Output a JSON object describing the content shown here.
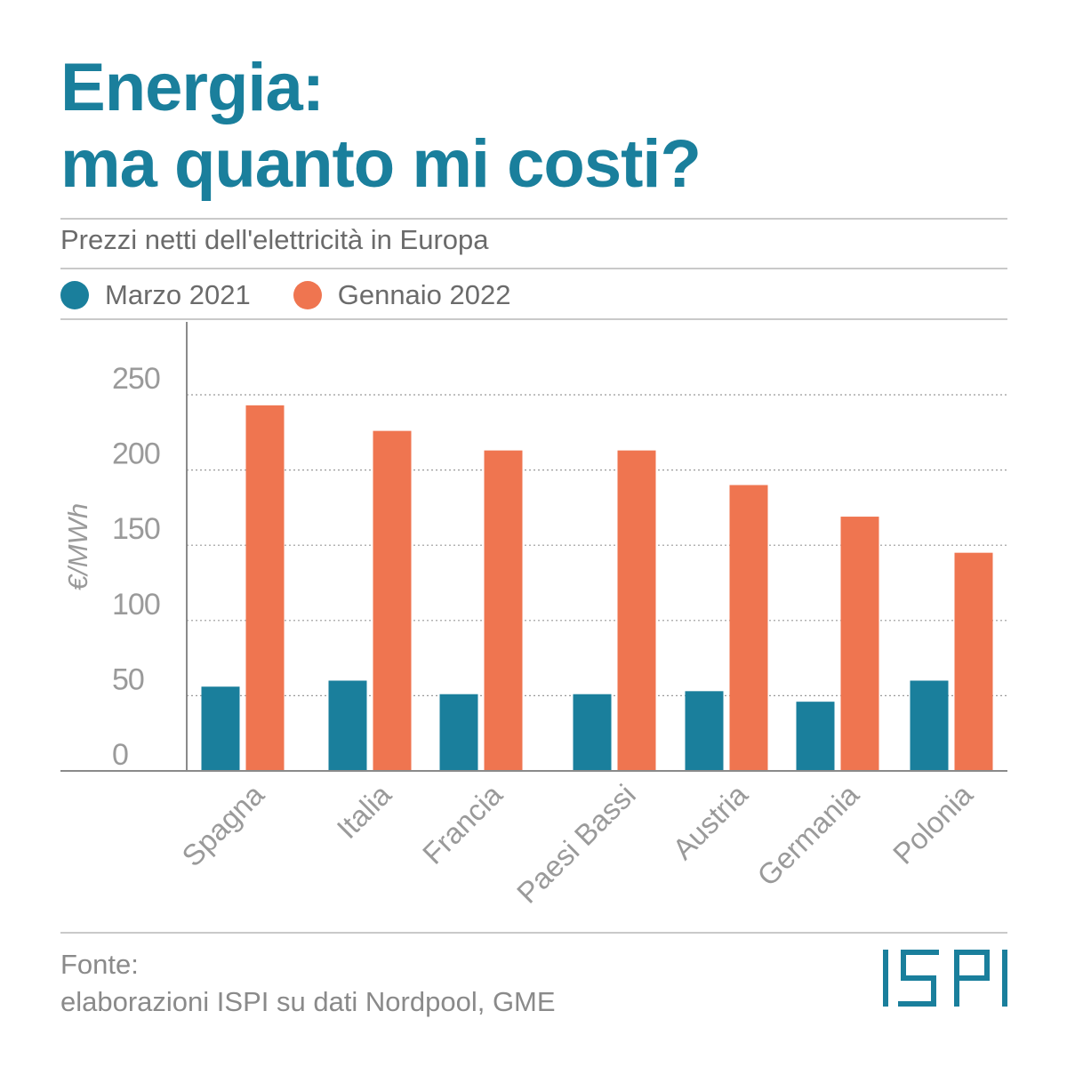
{
  "title_line1": "Energia:",
  "title_line2": "ma quanto mi costi?",
  "subtitle": "Prezzi netti dell'elettricità in Europa",
  "legend": [
    {
      "label": "Marzo 2021",
      "color": "#1a7f9c"
    },
    {
      "label": "Gennaio 2022",
      "color": "#ef7550"
    }
  ],
  "source_line1": "Fonte:",
  "source_line2": "elaborazioni ISPI su dati Nordpool, GME",
  "logo_text": "ISPI",
  "chart_data": {
    "type": "bar",
    "title": "Prezzi netti dell'elettricità in Europa",
    "ylabel": "€/MWh",
    "xlabel": "",
    "ylim": [
      0,
      250
    ],
    "yticks": [
      0,
      50,
      100,
      150,
      200,
      250
    ],
    "grid": true,
    "legend_position": "top-left",
    "categories": [
      "Spagna",
      "Italia",
      "Francia",
      "Paesi Bassi",
      "Austria",
      "Germania",
      "Polonia"
    ],
    "series": [
      {
        "name": "Marzo 2021",
        "color": "#1a7f9c",
        "values": [
          56,
          60,
          51,
          51,
          53,
          46,
          60
        ]
      },
      {
        "name": "Gennaio 2022",
        "color": "#ef7550",
        "values": [
          243,
          226,
          213,
          213,
          190,
          169,
          145
        ]
      }
    ]
  }
}
